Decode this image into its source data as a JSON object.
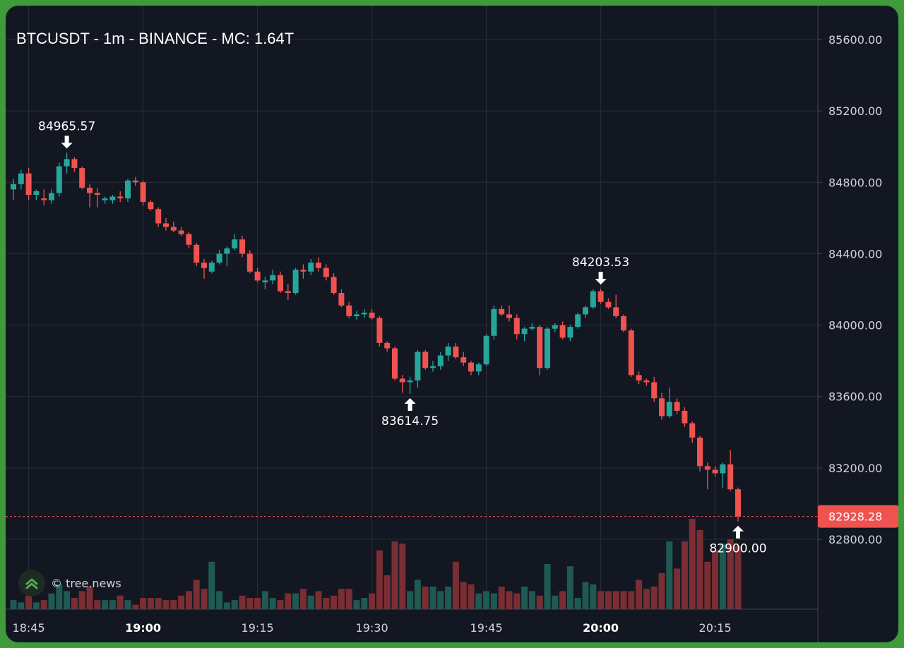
{
  "title": "BTCUSDT - 1m - BINANCE - MC: 1.64T",
  "watermark": {
    "text": "© tree.news",
    "icon": "tree-news-logo-icon"
  },
  "colors": {
    "up": "#26a69a",
    "down": "#ef5350",
    "background": "#131722",
    "grid": "#2a2e39",
    "text": "#d1d4dc",
    "frame": "#3f9a3a"
  },
  "chart_data": {
    "type": "candlestick",
    "symbol": "BTCUSDT",
    "interval": "1m",
    "exchange": "BINANCE",
    "grid": true,
    "y_axis": {
      "position": "right",
      "ylim": [
        82550,
        85800
      ],
      "tick_values": [
        82800,
        83200,
        83600,
        84000,
        84400,
        84800,
        85200,
        85600
      ],
      "tick_labels": [
        "82800.00",
        "83200.00",
        "83600.00",
        "84000.00",
        "84400.00",
        "84800.00",
        "85200.00",
        "85600.00"
      ]
    },
    "x_axis": {
      "ticks": [
        {
          "label": "18:45",
          "index": 2,
          "bold": false
        },
        {
          "label": "19:00",
          "index": 17,
          "bold": true
        },
        {
          "label": "19:15",
          "index": 32,
          "bold": false
        },
        {
          "label": "19:30",
          "index": 47,
          "bold": false
        },
        {
          "label": "19:45",
          "index": 62,
          "bold": false
        },
        {
          "label": "20:00",
          "index": 77,
          "bold": true
        },
        {
          "label": "20:15",
          "index": 92,
          "bold": false
        }
      ]
    },
    "last_price": {
      "value": 82928.28,
      "label": "82928.28"
    },
    "annotations": [
      {
        "label": "84965.57",
        "index": 7,
        "price": 84965.57,
        "kind": "high"
      },
      {
        "label": "83614.75",
        "index": 52,
        "price": 83614.75,
        "kind": "low"
      },
      {
        "label": "84203.53",
        "index": 77,
        "price": 84203.53,
        "kind": "high"
      },
      {
        "label": "82900.00",
        "index": 95,
        "price": 82900.0,
        "kind": "low"
      }
    ],
    "candles": [
      [
        84760,
        84820,
        84700,
        84790
      ],
      [
        84790,
        84870,
        84760,
        84850
      ],
      [
        84850,
        84880,
        84700,
        84730
      ],
      [
        84730,
        84760,
        84700,
        84750
      ],
      [
        84710,
        84760,
        84670,
        84700
      ],
      [
        84700,
        84760,
        84680,
        84740
      ],
      [
        84740,
        84910,
        84720,
        84890
      ],
      [
        84890,
        84966,
        84850,
        84930
      ],
      [
        84930,
        84940,
        84860,
        84880
      ],
      [
        84880,
        84890,
        84760,
        84770
      ],
      [
        84770,
        84790,
        84660,
        84740
      ],
      [
        84740,
        84770,
        84660,
        84730
      ],
      [
        84700,
        84720,
        84680,
        84710
      ],
      [
        84700,
        84730,
        84680,
        84720
      ],
      [
        84720,
        84750,
        84690,
        84710
      ],
      [
        84710,
        84820,
        84690,
        84810
      ],
      [
        84810,
        84830,
        84780,
        84800
      ],
      [
        84800,
        84810,
        84670,
        84690
      ],
      [
        84690,
        84700,
        84640,
        84650
      ],
      [
        84650,
        84660,
        84550,
        84570
      ],
      [
        84570,
        84600,
        84530,
        84550
      ],
      [
        84550,
        84580,
        84520,
        84530
      ],
      [
        84530,
        84550,
        84500,
        84510
      ],
      [
        84510,
        84520,
        84430,
        84450
      ],
      [
        84450,
        84460,
        84330,
        84350
      ],
      [
        84350,
        84370,
        84260,
        84320
      ],
      [
        84300,
        84360,
        84290,
        84350
      ],
      [
        84350,
        84420,
        84340,
        84400
      ],
      [
        84400,
        84440,
        84330,
        84430
      ],
      [
        84430,
        84510,
        84420,
        84480
      ],
      [
        84480,
        84500,
        84380,
        84400
      ],
      [
        84400,
        84420,
        84290,
        84300
      ],
      [
        84300,
        84320,
        84240,
        84250
      ],
      [
        84240,
        84270,
        84200,
        84250
      ],
      [
        84250,
        84310,
        84230,
        84280
      ],
      [
        84280,
        84300,
        84180,
        84190
      ],
      [
        84190,
        84230,
        84140,
        84180
      ],
      [
        84180,
        84320,
        84170,
        84310
      ],
      [
        84310,
        84340,
        84260,
        84300
      ],
      [
        84300,
        84370,
        84280,
        84350
      ],
      [
        84350,
        84380,
        84300,
        84320
      ],
      [
        84320,
        84340,
        84250,
        84270
      ],
      [
        84270,
        84290,
        84170,
        84180
      ],
      [
        84180,
        84200,
        84100,
        84110
      ],
      [
        84110,
        84130,
        84040,
        84050
      ],
      [
        84050,
        84080,
        84030,
        84060
      ],
      [
        84060,
        84090,
        84040,
        84070
      ],
      [
        84070,
        84090,
        84030,
        84040
      ],
      [
        84040,
        84050,
        83880,
        83900
      ],
      [
        83900,
        83910,
        83850,
        83870
      ],
      [
        83870,
        83880,
        83690,
        83700
      ],
      [
        83700,
        83720,
        83620,
        83680
      ],
      [
        83680,
        83710,
        83615,
        83690
      ],
      [
        83690,
        83860,
        83650,
        83850
      ],
      [
        83850,
        83860,
        83750,
        83760
      ],
      [
        83760,
        83800,
        83740,
        83770
      ],
      [
        83770,
        83850,
        83750,
        83830
      ],
      [
        83830,
        83900,
        83800,
        83880
      ],
      [
        83880,
        83900,
        83810,
        83820
      ],
      [
        83820,
        83850,
        83770,
        83790
      ],
      [
        83790,
        83800,
        83720,
        83740
      ],
      [
        83740,
        83790,
        83720,
        83780
      ],
      [
        83780,
        83950,
        83770,
        83940
      ],
      [
        83940,
        84110,
        83920,
        84090
      ],
      [
        84090,
        84110,
        84050,
        84060
      ],
      [
        84060,
        84110,
        84020,
        84040
      ],
      [
        84040,
        84060,
        83920,
        83950
      ],
      [
        83950,
        83990,
        83910,
        83980
      ],
      [
        83980,
        84010,
        83970,
        83990
      ],
      [
        83990,
        84000,
        83720,
        83760
      ],
      [
        83760,
        83990,
        83750,
        83980
      ],
      [
        83980,
        84010,
        83960,
        84000
      ],
      [
        84000,
        84020,
        83920,
        83930
      ],
      [
        83930,
        84000,
        83910,
        83990
      ],
      [
        83990,
        84070,
        83980,
        84060
      ],
      [
        84060,
        84110,
        84040,
        84100
      ],
      [
        84100,
        84200,
        84090,
        84190
      ],
      [
        84190,
        84204,
        84120,
        84130
      ],
      [
        84130,
        84150,
        84090,
        84100
      ],
      [
        84100,
        84170,
        84040,
        84050
      ],
      [
        84050,
        84060,
        83960,
        83970
      ],
      [
        83970,
        83980,
        83710,
        83720
      ],
      [
        83720,
        83740,
        83670,
        83690
      ],
      [
        83690,
        83700,
        83660,
        83680
      ],
      [
        83680,
        83710,
        83570,
        83590
      ],
      [
        83590,
        83620,
        83470,
        83490
      ],
      [
        83490,
        83650,
        83480,
        83570
      ],
      [
        83570,
        83590,
        83500,
        83520
      ],
      [
        83520,
        83540,
        83430,
        83450
      ],
      [
        83450,
        83460,
        83340,
        83370
      ],
      [
        83370,
        83380,
        83180,
        83210
      ],
      [
        83210,
        83230,
        83080,
        83190
      ],
      [
        83190,
        83210,
        83150,
        83170
      ],
      [
        83170,
        83230,
        83090,
        83220
      ],
      [
        83220,
        83300,
        83070,
        83080
      ],
      [
        83080,
        83090,
        82900,
        82928
      ]
    ],
    "volumes": [
      0.08,
      0.06,
      0.12,
      0.06,
      0.08,
      0.14,
      0.22,
      0.16,
      0.1,
      0.16,
      0.2,
      0.08,
      0.08,
      0.08,
      0.12,
      0.08,
      0.04,
      0.1,
      0.1,
      0.1,
      0.08,
      0.08,
      0.12,
      0.16,
      0.26,
      0.18,
      0.42,
      0.16,
      0.06,
      0.08,
      0.12,
      0.1,
      0.1,
      0.16,
      0.1,
      0.08,
      0.14,
      0.14,
      0.18,
      0.12,
      0.16,
      0.1,
      0.12,
      0.18,
      0.18,
      0.08,
      0.1,
      0.14,
      0.52,
      0.3,
      0.6,
      0.58,
      0.16,
      0.26,
      0.2,
      0.2,
      0.16,
      0.2,
      0.42,
      0.24,
      0.22,
      0.14,
      0.16,
      0.14,
      0.2,
      0.16,
      0.14,
      0.2,
      0.16,
      0.12,
      0.4,
      0.12,
      0.16,
      0.38,
      0.1,
      0.24,
      0.22,
      0.16,
      0.16,
      0.16,
      0.16,
      0.16,
      0.26,
      0.18,
      0.2,
      0.32,
      0.6,
      0.36,
      0.6,
      0.8,
      0.7,
      0.42,
      0.52,
      0.58,
      0.62,
      0.56
    ]
  }
}
